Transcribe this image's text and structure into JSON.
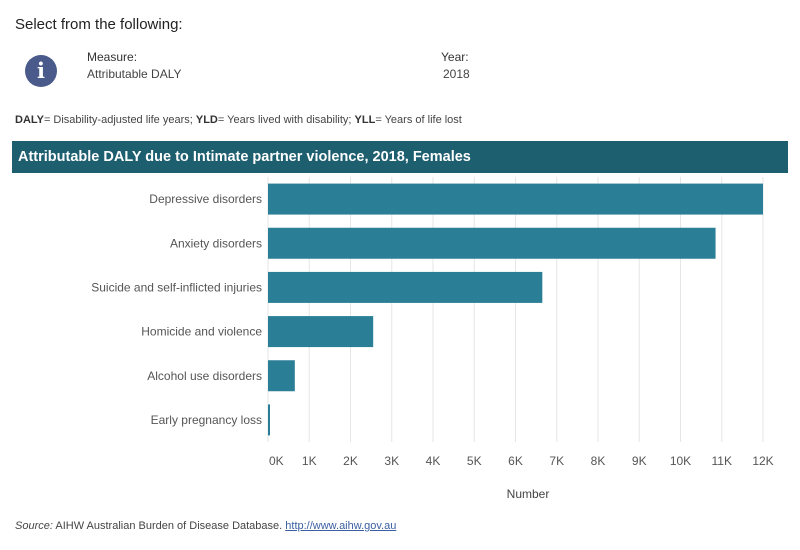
{
  "header": {
    "select_heading": "Select from the following:",
    "info_icon_glyph": "i",
    "measure_label": "Measure:",
    "measure_value": "Attributable DALY",
    "year_label": "Year:",
    "year_value": "2018"
  },
  "legend_note": {
    "daly_abbr": "DALY",
    "daly_text": "= Disability-adjusted life years; ",
    "yld_abbr": "YLD",
    "yld_text": "= Years lived with disability; ",
    "yll_abbr": "YLL",
    "yll_text": "= Years of life lost"
  },
  "colors": {
    "bar": "#2a7f96",
    "banner": "#1d5e6f",
    "grid": "#e6e6e6"
  },
  "chart_data": {
    "type": "bar",
    "orientation": "horizontal",
    "title": "Attributable DALY due to Intimate partner violence, 2018, Females",
    "categories": [
      "Depressive disorders",
      "Anxiety disorders",
      "Suicide and self-inflicted injuries",
      "Homicide and violence",
      "Alcohol use disorders",
      "Early pregnancy loss"
    ],
    "values": [
      12000,
      10850,
      6650,
      2550,
      650,
      40
    ],
    "xlabel": "Number",
    "xlim": [
      0,
      12500
    ],
    "xticks": [
      0,
      1000,
      2000,
      3000,
      4000,
      5000,
      6000,
      7000,
      8000,
      9000,
      10000,
      11000,
      12000
    ],
    "xtick_labels": [
      "0K",
      "1K",
      "2K",
      "3K",
      "4K",
      "5K",
      "6K",
      "7K",
      "8K",
      "9K",
      "10K",
      "11K",
      "12K"
    ],
    "grid": true
  },
  "source": {
    "label": "Source:",
    "text": " AIHW Australian Burden of Disease Database. ",
    "link": "http://www.aihw.gov.au"
  }
}
